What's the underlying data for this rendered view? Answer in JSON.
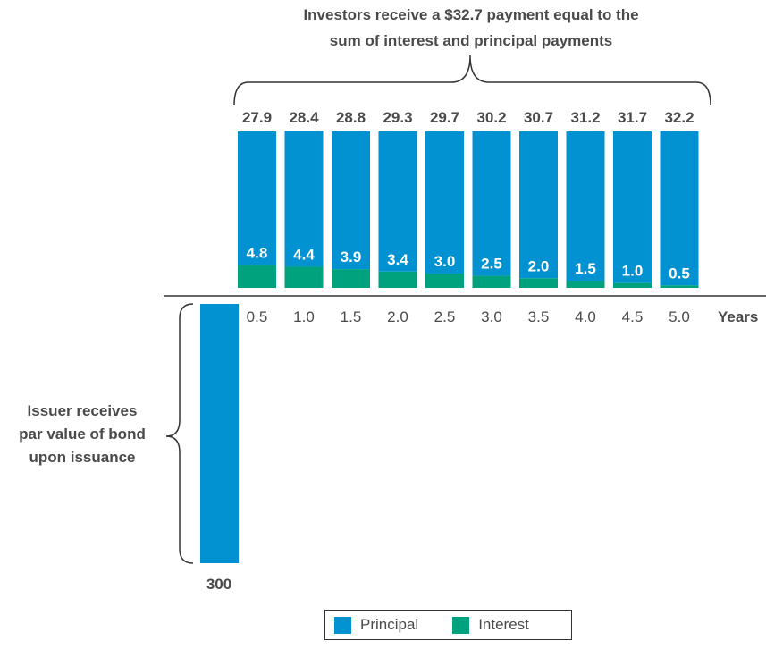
{
  "annotations": {
    "top_line1": "Investors receive a $32.7 payment equal to the",
    "top_line2": "sum of interest and principal payments",
    "left_line1": "Issuer receives",
    "left_line2": "par value of bond",
    "left_line3": "upon issuance"
  },
  "colors": {
    "principal": "#0291D1",
    "interest": "#00A17D"
  },
  "legend": {
    "principal": "Principal",
    "interest": "Interest"
  },
  "chart_data": {
    "type": "bar",
    "stacked": true,
    "xlabel": "Years",
    "categories": [
      "0.5",
      "1.0",
      "1.5",
      "2.0",
      "2.5",
      "3.0",
      "3.5",
      "4.0",
      "4.5",
      "5.0"
    ],
    "series": [
      {
        "name": "Principal",
        "values": [
          27.9,
          28.4,
          28.8,
          29.3,
          29.7,
          30.2,
          30.7,
          31.2,
          31.7,
          32.2
        ]
      },
      {
        "name": "Interest",
        "values": [
          4.8,
          4.4,
          3.9,
          3.4,
          3.0,
          2.5,
          2.0,
          1.5,
          1.0,
          0.5
        ]
      }
    ],
    "issuance": {
      "value": 300,
      "label": "300"
    }
  }
}
